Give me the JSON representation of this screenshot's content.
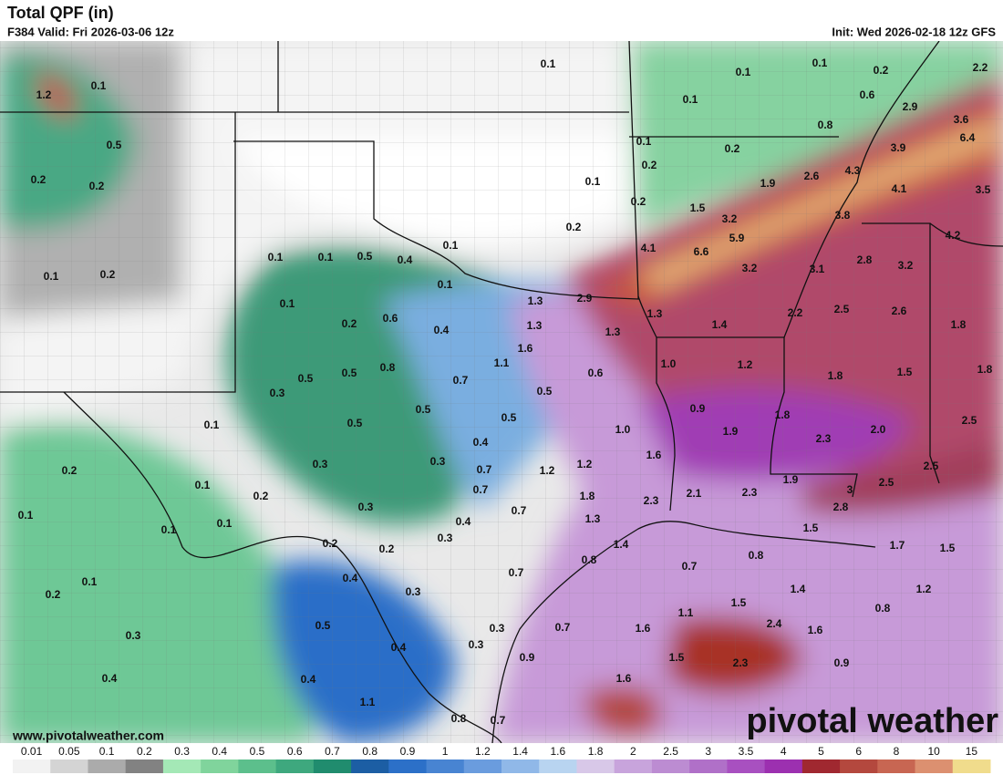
{
  "header": {
    "title": "Total QPF (in)",
    "valid": "F384 Valid: Fri 2026-03-06 12z",
    "init": "Init: Wed 2026-02-18 12z GFS"
  },
  "footer": {
    "website": "www.pivotalweather.com",
    "logo": "pivotal weather"
  },
  "amounts": [
    "1.2",
    "0.1",
    "0.5",
    "0.2",
    "0.2",
    "0.1",
    "0.2",
    "0.1",
    "0.1",
    "0.1",
    "0.2",
    "2.2",
    "0.6",
    "2.9",
    "3.6",
    "0.1",
    "0.8",
    "6.4",
    "0.1",
    "0.2",
    "3.9",
    "0.2",
    "4.3",
    "1.9",
    "2.6",
    "0.1",
    "4.1",
    "3.5",
    "0.2",
    "1.5",
    "3.2",
    "3.8",
    "0.2",
    "5.9",
    "4.2",
    "6.6",
    "4.1",
    "0.1",
    "0.1",
    "0.1",
    "0.5",
    "0.4",
    "3.2",
    "3.1",
    "2.8",
    "3.2",
    "0.1",
    "1.3",
    "2.9",
    "0.1",
    "1.3",
    "2.2",
    "2.5",
    "2.6",
    "0.6",
    "0.2",
    "1.3",
    "1.3",
    "1.4",
    "1.8",
    "0.4",
    "1.6",
    "1.1",
    "1.0",
    "1.2",
    "1.8",
    "1.5",
    "1.8",
    "0.5",
    "0.5",
    "0.8",
    "0.7",
    "0.6",
    "0.3",
    "0.5",
    "0.9",
    "0.5",
    "1.8",
    "2.5",
    "0.1",
    "0.5",
    "0.5",
    "1.0",
    "1.9",
    "2.0",
    "2.3",
    "0.4",
    "1.6",
    "0.3",
    "0.3",
    "0.7",
    "1.2",
    "1.2",
    "2.5",
    "0.2",
    "0.1",
    "1.9",
    "2.5",
    "0.7",
    "3",
    "0.2",
    "1.8",
    "2.1",
    "2.3",
    "2.3",
    "0.3",
    "0.7",
    "2.8",
    "0.1",
    "0.1",
    "0.4",
    "1.3",
    "0.1",
    "0.3",
    "1.4",
    "1.5",
    "1.7",
    "1.5",
    "0.2",
    "0.2",
    "0.8",
    "0.8",
    "0.7",
    "0.7",
    "0.4",
    "0.1",
    "1.4",
    "1.2",
    "0.2",
    "0.3",
    "1.5",
    "0.8",
    "1.1",
    "0.5",
    "0.3",
    "0.7",
    "1.6",
    "2.4",
    "1.6",
    "0.3",
    "0.4",
    "0.3",
    "0.9",
    "1.5",
    "2.3",
    "0.9",
    "0.4",
    "0.4",
    "1.6",
    "1.1",
    "0.8",
    "0.7"
  ],
  "colorbar": {
    "ticks": [
      0.01,
      0.05,
      0.1,
      0.2,
      0.3,
      0.4,
      0.5,
      0.6,
      0.7,
      0.8,
      0.9,
      1,
      1.2,
      1.4,
      1.6,
      1.8,
      2,
      2.5,
      3,
      3.5,
      4,
      5,
      6,
      8,
      10,
      15
    ],
    "colors": [
      "#f2f2f2",
      "#d4d4d4",
      "#ababab",
      "#828282",
      "#a4e8b6",
      "#80d49c",
      "#5cbf8c",
      "#3ea87e",
      "#208c6e",
      "#1c5ea4",
      "#2c70c8",
      "#4884d2",
      "#6a9cde",
      "#90b8e8",
      "#b8d4f0",
      "#d8c8e8",
      "#c8a4dc",
      "#bc8cd2",
      "#b070c8",
      "#a850c0",
      "#9c30b0",
      "#a02830",
      "#b4483e",
      "#c86652",
      "#dc9070",
      "#f0dc8c"
    ]
  }
}
